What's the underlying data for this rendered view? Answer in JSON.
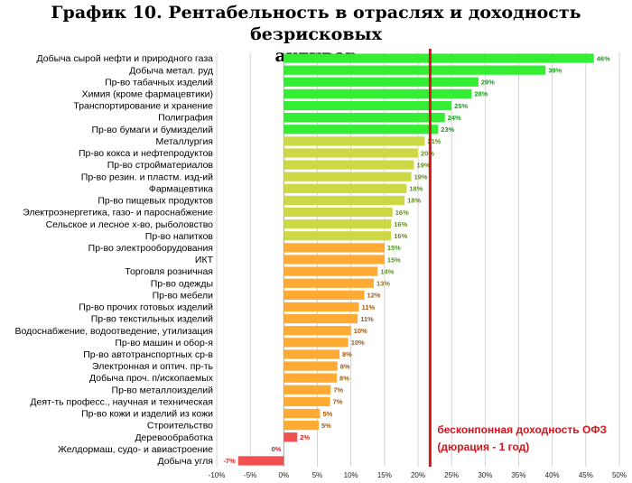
{
  "chart_data": {
    "type": "bar",
    "orientation": "horizontal",
    "title_line1": "График 10. Рентабельность в отраслях и доходность безрисковых",
    "title_line2": "активов",
    "categories": [
      "Добыча сырой нефти и природного газа",
      "Добыча метал. руд",
      "Пр-во табачных изделий",
      "Химия (кроме фармацевтики)",
      "Транспортирование и хранение",
      "Полиграфия",
      "Пр-во бумаги и бумизделий",
      "Металлургия",
      "Пр-во кокса и нефтепродуктов",
      "Пр-во стройматериалов",
      "Пр-во резин. и пластм. изд-ий",
      "Фармацевтика",
      "Пр-во пищевых продуктов",
      "Электроэнергетика, газо- и пароснабжение",
      "Сельское и лесное х-во, рыболовство",
      "Пр-во напитков",
      "Пр-во электрооборудования",
      "ИКТ",
      "Торговля розничная",
      "Пр-во одежды",
      "Пр-во мебели",
      "Пр-во прочих готовых изделий",
      "Пр-во текстильных изделий",
      "Водоснабжение, водоотведение, утилизация",
      "Пр-во машин и обор-я",
      "Пр-во автотранспортных ср-в",
      "Электронная и оптич. пр-ть",
      "Добыча проч. п/ископаемых",
      "Пр-во металлоизделий",
      "Деят-ть професс., научная и техническая",
      "Пр-во кожи и изделий из кожи",
      "Строительство",
      "Деревообработка",
      "Желдормаш, судо- и авиастроение",
      "Добыча угля"
    ],
    "values": [
      46.2,
      39,
      29,
      28,
      25,
      24,
      23,
      21,
      20,
      19.4,
      19,
      18.3,
      18,
      16.2,
      16,
      16,
      15,
      15,
      14,
      13.4,
      12,
      11.2,
      11,
      10,
      9.6,
      8.3,
      8,
      7.9,
      7,
      6.9,
      5.4,
      5.2,
      2,
      0,
      -6.8
    ],
    "data_labels": [
      "46%",
      "39%",
      "29%",
      "28%",
      "25%",
      "24%",
      "23%",
      "21%",
      "20%",
      "19%",
      "19%",
      "18%",
      "18%",
      "16%",
      "16%",
      "16%",
      "15%",
      "15%",
      "14%",
      "13%",
      "12%",
      "11%",
      "11%",
      "10%",
      "10%",
      "8%",
      "8%",
      "8%",
      "7%",
      "7%",
      "5%",
      "5%",
      "2%",
      "0%",
      "-7%"
    ],
    "bar_colors": [
      "#33ee33",
      "#33ee33",
      "#33ee33",
      "#33ee33",
      "#33ee33",
      "#33ee33",
      "#33ee33",
      "#ccd944",
      "#ccd944",
      "#ccd944",
      "#ccd944",
      "#ccd944",
      "#ccd944",
      "#ccd944",
      "#ccd944",
      "#ccd944",
      "#ffaa33",
      "#ffaa33",
      "#ffaa33",
      "#ffaa33",
      "#ffaa33",
      "#ffaa33",
      "#ffaa33",
      "#ffaa33",
      "#ffaa33",
      "#ffaa33",
      "#ffaa33",
      "#ffaa33",
      "#ffaa33",
      "#ffaa33",
      "#ffaa33",
      "#ffaa33",
      "#f05050",
      "#f05050",
      "#f05050"
    ],
    "label_colors": [
      "#1b9e1b",
      "#1b9e1b",
      "#1b9e1b",
      "#1b9e1b",
      "#1b9e1b",
      "#1b9e1b",
      "#1b9e1b",
      "#5f8f1f",
      "#5f8f1f",
      "#5f8f1f",
      "#5f8f1f",
      "#5f8f1f",
      "#5f8f1f",
      "#5f8f1f",
      "#5f8f1f",
      "#5f8f1f",
      "#4a9a1a",
      "#4a9a1a",
      "#5f8f1f",
      "#8a7a1a",
      "#a05a10",
      "#a05a10",
      "#a05a10",
      "#a05a10",
      "#a05a10",
      "#a05a10",
      "#a05a10",
      "#a05a10",
      "#a05a10",
      "#a05a10",
      "#a05a10",
      "#a05a10",
      "#d42020",
      "#d42020",
      "#d42020"
    ],
    "xlim": [
      -10,
      50
    ],
    "x_ticks": [
      -10,
      -5,
      0,
      5,
      10,
      15,
      20,
      25,
      30,
      35,
      40,
      45,
      50
    ],
    "x_tick_labels": [
      "-10%",
      "-5%",
      "0%",
      "5%",
      "10%",
      "15%",
      "20%",
      "25%",
      "30%",
      "35%",
      "40%",
      "45%",
      "50%"
    ],
    "grid": true,
    "reference_line": {
      "value": 21.8,
      "color": "#d4141c",
      "label_line1": "бесконпонная доходность ОФЗ",
      "label_line2": "(дюрация - 1 год)"
    }
  }
}
